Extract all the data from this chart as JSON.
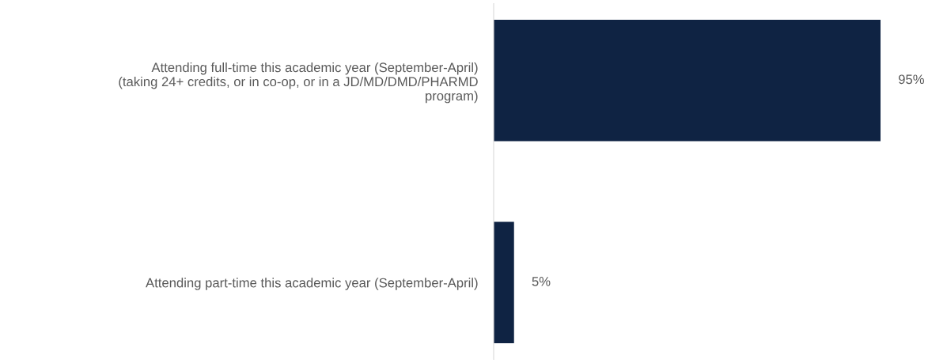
{
  "chart_data": {
    "type": "bar",
    "orientation": "horizontal",
    "categories": [
      "Attending full-time this academic year (September-April)\n(taking 24+ credits, or in co-op, or in a JD/MD/DMD/PHARMD\nprogram)",
      "Attending part-time this academic year (September-April)"
    ],
    "values": [
      95,
      5
    ],
    "color": "#0f2343",
    "value_labels": [
      "95%",
      "5%"
    ],
    "tick_labels": "y",
    "grid": false,
    "legend": false
  }
}
